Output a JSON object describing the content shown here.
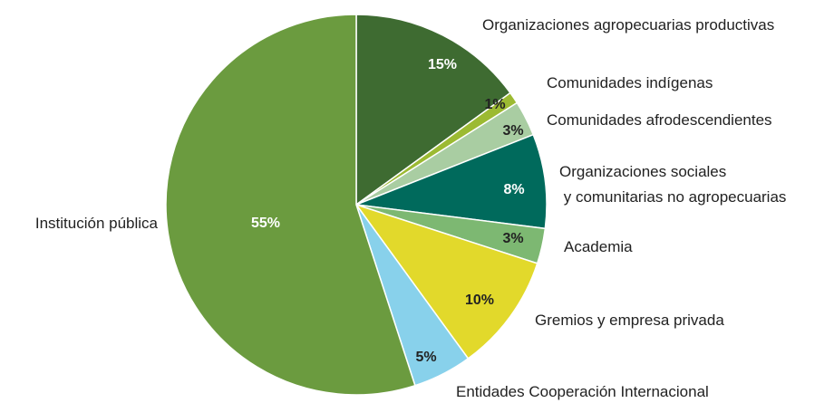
{
  "chart_data": {
    "type": "pie",
    "categories": [
      "Organizaciones agropecuarias productivas",
      "Comunidades indígenas",
      "Comunidades afrodescendientes",
      "Organizaciones sociales\n y comunitarias no agropecuarias",
      "Academia",
      "Gremios y empresa privada",
      "Entidades Cooperación Internacional",
      "Institución pública"
    ],
    "values": [
      15,
      1,
      3,
      8,
      3,
      10,
      5,
      55
    ],
    "value_labels": [
      "15%",
      "1%",
      "3%",
      "8%",
      "3%",
      "10%",
      "5%",
      "55%"
    ],
    "colors": [
      "#3e6b31",
      "#9cba32",
      "#a9cda2",
      "#006a5c",
      "#7db872",
      "#e2d92b",
      "#88d1eb",
      "#6b9b3f"
    ],
    "label_colors": [
      "#ffffff",
      "#222222",
      "#222222",
      "#ffffff",
      "#222222",
      "#222222",
      "#222222",
      "#ffffff"
    ]
  }
}
